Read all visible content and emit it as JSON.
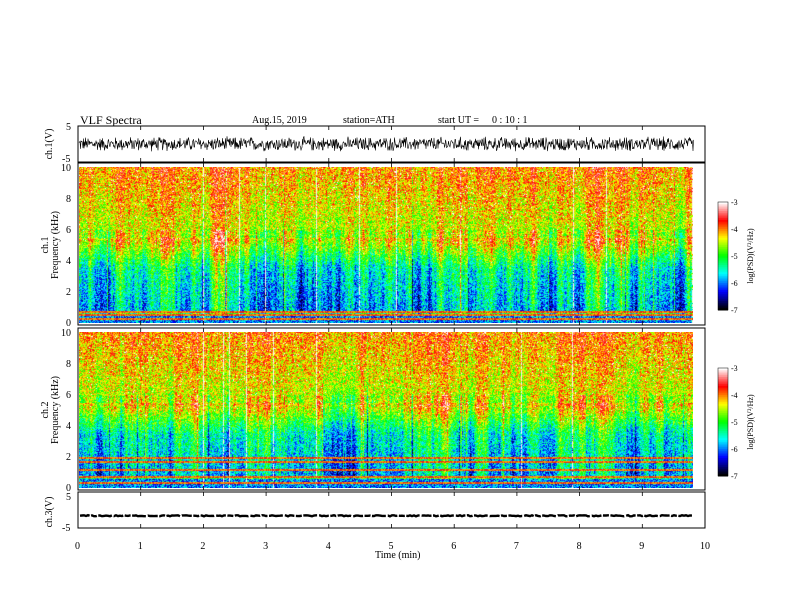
{
  "chart_data": {
    "type": "heatmap",
    "title": "VLF  Spectra",
    "date": "Aug.15, 2019",
    "station": "station=ATH",
    "start_ut_label": "start  UT  =",
    "start_ut_value": "0 : 10 : 1",
    "x_axis": {
      "label": "Time  (min)",
      "range": [
        0,
        10
      ],
      "ticks": [
        "0",
        "1",
        "2",
        "3",
        "4",
        "5",
        "6",
        "7",
        "8",
        "9",
        "10"
      ],
      "data_end": 9.82
    },
    "panels": [
      {
        "id": "ch1v",
        "ylabel": "ch.1(V)",
        "type": "line",
        "ylim": [
          -5,
          5
        ],
        "ticks": [
          "5",
          "-5"
        ],
        "baseline": 0,
        "amplitude": 1.6
      },
      {
        "id": "ch1",
        "ylabel_top": "ch.1",
        "ylabel": "Frequency  (kHz)",
        "type": "spectrogram",
        "ylim": [
          0,
          10
        ],
        "ticks": [
          "0",
          "2",
          "4",
          "6",
          "8",
          "10"
        ],
        "bands_khz": [
          0.3,
          0.6,
          0.8
        ]
      },
      {
        "id": "ch2",
        "ylabel_top": "ch.2",
        "ylabel": "Frequency  (kHz)",
        "type": "spectrogram",
        "ylim": [
          0,
          10
        ],
        "ticks": [
          "0",
          "2",
          "4",
          "6",
          "8",
          "10"
        ],
        "bands_khz": [
          0.4,
          0.8,
          1.2,
          1.7,
          2.0
        ]
      },
      {
        "id": "ch3v",
        "ylabel": "ch.3(V)",
        "type": "line",
        "ylim": [
          -5,
          5
        ],
        "ticks": [
          "5",
          "-5"
        ],
        "baseline": -1.6,
        "amplitude": 0.3
      }
    ],
    "colorbar": {
      "label": "log(PSD)(V²/Hz)",
      "range": [
        -7,
        -3
      ],
      "ticks": [
        "-3",
        "-4",
        "-5",
        "-6",
        "-7"
      ],
      "colors": [
        "#ffffff",
        "#ff0000",
        "#ffff00",
        "#00ff00",
        "#00ffff",
        "#0000ff",
        "#000000"
      ]
    }
  }
}
